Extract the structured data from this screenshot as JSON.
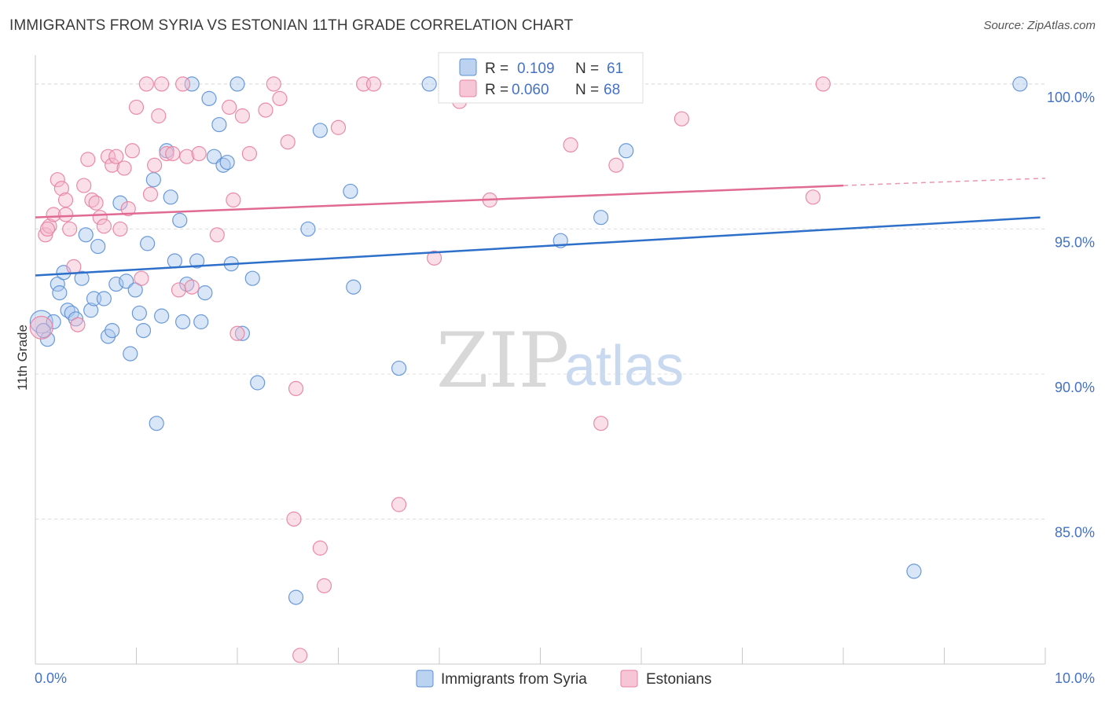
{
  "title": "IMMIGRANTS FROM SYRIA VS ESTONIAN 11TH GRADE CORRELATION CHART",
  "source": "Source: ZipAtlas.com",
  "colors": {
    "blue_fill": "#aac8ee",
    "blue_stroke": "#5b8fd6",
    "blue_line": "#2e6fc9",
    "pink_fill": "#f5b8cc",
    "pink_stroke": "#e8809f",
    "pink_line": "#e06a93",
    "grid": "#dcdcdc",
    "tick_text": "#4472c4"
  },
  "watermark": {
    "zip": "ZIP",
    "atlas": "atlas"
  },
  "legend": {
    "rows": [
      {
        "r_label": "R =",
        "r_value": "0.109",
        "n_label": "N =",
        "n_value": "61"
      },
      {
        "r_label": "R =",
        "r_value": "0.060",
        "n_label": "N =",
        "n_value": "68"
      }
    ]
  },
  "bottom_legend": [
    "Immigrants from Syria",
    "Estonians"
  ],
  "chart_data": {
    "type": "scatter",
    "ylabel": "11th Grade",
    "xlim": [
      0,
      10
    ],
    "ylim": [
      80,
      101
    ],
    "x_tick_labels": [
      "0.0%",
      "10.0%"
    ],
    "y_ticks": [
      85,
      90,
      95,
      100
    ],
    "y_tick_labels": [
      "85.0%",
      "90.0%",
      "95.0%",
      "100.0%"
    ],
    "grid": "horizontal dashed",
    "series": [
      {
        "name": "Immigrants from Syria",
        "trend": {
          "x0": 0.0,
          "y0": 93.4,
          "x1": 9.95,
          "y1": 95.4
        },
        "points": [
          [
            0.06,
            91.8,
            1.6
          ],
          [
            0.12,
            91.2,
            1.0
          ],
          [
            0.18,
            91.8,
            1.0
          ],
          [
            0.22,
            93.1,
            1.0
          ],
          [
            0.24,
            92.8,
            1.0
          ],
          [
            0.28,
            93.5,
            1.0
          ],
          [
            0.32,
            92.2,
            1.0
          ],
          [
            0.36,
            92.1,
            1.0
          ],
          [
            0.4,
            91.9,
            1.0
          ],
          [
            0.46,
            93.3,
            1.0
          ],
          [
            0.5,
            94.8,
            1.0
          ],
          [
            0.55,
            92.2,
            1.0
          ],
          [
            0.58,
            92.6,
            1.0
          ],
          [
            0.62,
            94.4,
            1.0
          ],
          [
            0.68,
            92.6,
            1.0
          ],
          [
            0.72,
            91.3,
            1.0
          ],
          [
            0.76,
            91.5,
            1.0
          ],
          [
            0.8,
            93.1,
            1.0
          ],
          [
            0.84,
            95.9,
            1.0
          ],
          [
            0.9,
            93.2,
            1.0
          ],
          [
            0.94,
            90.7,
            1.0
          ],
          [
            0.99,
            92.9,
            1.0
          ],
          [
            1.03,
            92.1,
            1.0
          ],
          [
            1.07,
            91.5,
            1.0
          ],
          [
            1.11,
            94.5,
            1.0
          ],
          [
            1.17,
            96.7,
            1.0
          ],
          [
            1.2,
            88.3,
            1.0
          ],
          [
            1.25,
            92.0,
            1.0
          ],
          [
            1.3,
            97.7,
            1.0
          ],
          [
            1.34,
            96.1,
            1.0
          ],
          [
            1.38,
            93.9,
            1.0
          ],
          [
            1.43,
            95.3,
            1.0
          ],
          [
            1.46,
            91.8,
            1.0
          ],
          [
            1.5,
            93.1,
            1.0
          ],
          [
            1.55,
            100.0,
            1.0
          ],
          [
            1.6,
            93.9,
            1.0
          ],
          [
            1.64,
            91.8,
            1.0
          ],
          [
            1.68,
            92.8,
            1.0
          ],
          [
            1.72,
            99.5,
            1.0
          ],
          [
            1.77,
            97.5,
            1.0
          ],
          [
            1.82,
            98.6,
            1.0
          ],
          [
            1.86,
            97.2,
            1.0
          ],
          [
            1.9,
            97.3,
            1.0
          ],
          [
            1.94,
            93.8,
            1.0
          ],
          [
            2.0,
            100.0,
            1.0
          ],
          [
            2.05,
            91.4,
            1.0
          ],
          [
            2.15,
            93.3,
            1.0
          ],
          [
            2.2,
            89.7,
            1.0
          ],
          [
            2.58,
            82.3,
            1.0
          ],
          [
            2.7,
            95.0,
            1.0
          ],
          [
            2.82,
            98.4,
            1.0
          ],
          [
            3.12,
            96.3,
            1.0
          ],
          [
            3.15,
            93.0,
            1.0
          ],
          [
            3.6,
            90.2,
            1.0
          ],
          [
            3.9,
            100.0,
            1.0
          ],
          [
            5.2,
            94.6,
            1.0
          ],
          [
            5.6,
            95.4,
            1.0
          ],
          [
            5.85,
            97.7,
            1.0
          ],
          [
            8.7,
            83.2,
            1.0
          ],
          [
            9.75,
            100.0,
            1.0
          ],
          [
            0.08,
            91.5,
            1.0
          ]
        ]
      },
      {
        "name": "Estonians",
        "trend": {
          "x0": 0.0,
          "y0": 95.4,
          "x1": 8.0,
          "y1": 96.5,
          "dash_x1": 10.0,
          "dash_y1": 96.75
        },
        "points": [
          [
            0.06,
            91.6,
            1.6
          ],
          [
            0.1,
            94.8,
            1.0
          ],
          [
            0.14,
            95.1,
            1.0
          ],
          [
            0.18,
            95.5,
            1.0
          ],
          [
            0.22,
            96.7,
            1.0
          ],
          [
            0.26,
            96.4,
            1.0
          ],
          [
            0.3,
            95.5,
            1.0
          ],
          [
            0.34,
            95.0,
            1.0
          ],
          [
            0.38,
            93.7,
            1.0
          ],
          [
            0.42,
            91.7,
            1.0
          ],
          [
            0.48,
            96.5,
            1.0
          ],
          [
            0.52,
            97.4,
            1.0
          ],
          [
            0.56,
            96.0,
            1.0
          ],
          [
            0.6,
            95.9,
            1.0
          ],
          [
            0.64,
            95.4,
            1.0
          ],
          [
            0.68,
            95.1,
            1.0
          ],
          [
            0.72,
            97.5,
            1.0
          ],
          [
            0.76,
            97.2,
            1.0
          ],
          [
            0.8,
            97.5,
            1.0
          ],
          [
            0.84,
            95.0,
            1.0
          ],
          [
            0.88,
            97.1,
            1.0
          ],
          [
            0.92,
            95.7,
            1.0
          ],
          [
            0.96,
            97.7,
            1.0
          ],
          [
            1.0,
            99.2,
            1.0
          ],
          [
            1.05,
            93.3,
            1.0
          ],
          [
            1.1,
            100.0,
            1.0
          ],
          [
            1.14,
            96.2,
            1.0
          ],
          [
            1.18,
            97.2,
            1.0
          ],
          [
            1.22,
            98.9,
            1.0
          ],
          [
            1.3,
            97.6,
            1.0
          ],
          [
            1.36,
            97.6,
            1.0
          ],
          [
            1.42,
            92.9,
            1.0
          ],
          [
            1.46,
            100.0,
            1.0
          ],
          [
            1.5,
            97.5,
            1.0
          ],
          [
            1.55,
            93.0,
            1.0
          ],
          [
            1.62,
            97.6,
            1.0
          ],
          [
            1.8,
            94.8,
            1.0
          ],
          [
            1.92,
            99.2,
            1.0
          ],
          [
            1.96,
            96.0,
            1.0
          ],
          [
            2.0,
            91.4,
            1.0
          ],
          [
            2.05,
            98.9,
            1.0
          ],
          [
            2.12,
            97.6,
            1.0
          ],
          [
            2.28,
            99.1,
            1.0
          ],
          [
            2.36,
            100.0,
            1.0
          ],
          [
            2.42,
            99.5,
            1.0
          ],
          [
            2.5,
            98.0,
            1.0
          ],
          [
            2.56,
            85.0,
            1.0
          ],
          [
            2.58,
            89.5,
            1.0
          ],
          [
            2.62,
            80.3,
            1.0
          ],
          [
            2.82,
            84.0,
            1.0
          ],
          [
            2.86,
            82.7,
            1.0
          ],
          [
            3.0,
            98.5,
            1.0
          ],
          [
            3.25,
            100.0,
            1.0
          ],
          [
            3.35,
            100.0,
            1.0
          ],
          [
            3.6,
            85.5,
            1.0
          ],
          [
            3.95,
            94.0,
            1.0
          ],
          [
            4.2,
            99.4,
            1.0
          ],
          [
            4.5,
            96.0,
            1.0
          ],
          [
            5.3,
            97.9,
            1.0
          ],
          [
            5.6,
            88.3,
            1.0
          ],
          [
            5.75,
            97.2,
            1.0
          ],
          [
            5.9,
            100.0,
            1.0
          ],
          [
            6.4,
            98.8,
            1.0
          ],
          [
            7.7,
            96.1,
            1.0
          ],
          [
            7.8,
            100.0,
            1.0
          ],
          [
            0.12,
            95.0,
            1.0
          ],
          [
            0.3,
            96.0,
            1.0
          ],
          [
            1.25,
            100.0,
            1.0
          ]
        ]
      }
    ]
  }
}
